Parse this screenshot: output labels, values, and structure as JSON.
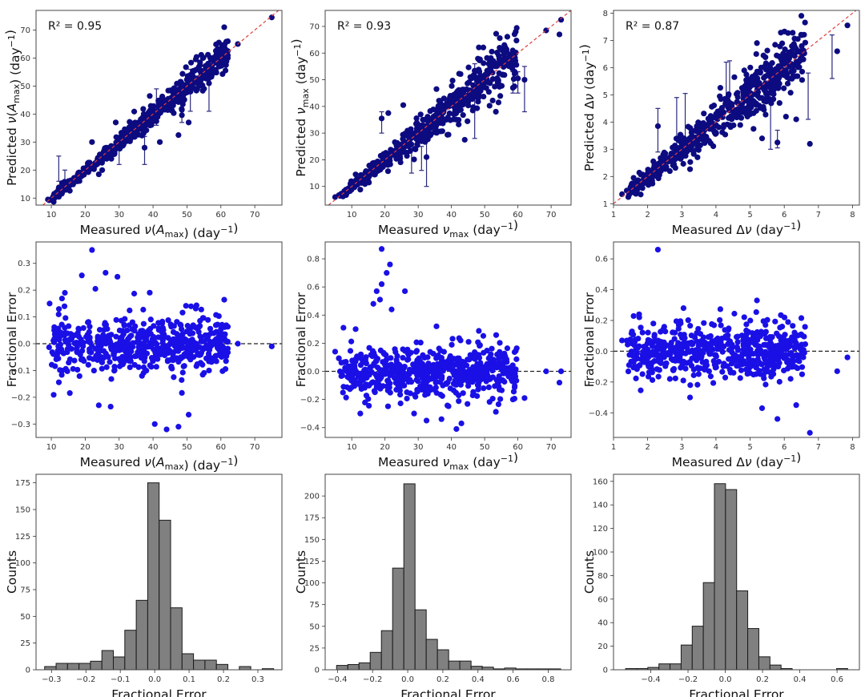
{
  "colors": {
    "scatter_pred": "#0d0b80",
    "scatter_err": "#1a10e6",
    "errbar": "#2a2a80",
    "oneone": "#e04040",
    "hist_fill": "#808080",
    "hist_edge": "#1a1a1a",
    "axis": "#444444"
  },
  "chart_data": [
    {
      "id": "pred-vs-meas-amax",
      "type": "scatter",
      "row": 0,
      "col": 0,
      "xlabel": "Measured ν(A_max) (day⁻¹)",
      "ylabel": "Predicted ν(A_max) (day⁻¹)",
      "annotation": "R² = 0.95",
      "xlim": [
        5.5,
        78
      ],
      "ylim": [
        7.5,
        77
      ],
      "xticks": [
        10,
        20,
        30,
        40,
        50,
        60,
        70
      ],
      "yticks": [
        10,
        20,
        30,
        40,
        50,
        60,
        70
      ],
      "tick_labels_x": [
        "10",
        "20",
        "30",
        "40",
        "50",
        "60",
        "70"
      ],
      "tick_labels_y": [
        "10",
        "20",
        "30",
        "40",
        "50",
        "60",
        "70"
      ],
      "reference_line": "y = x (red dashed)",
      "scatter_seed": 11,
      "n_points": 560,
      "trend": "identity",
      "spread": 0.06,
      "outliers": [
        [
          9,
          9.5
        ],
        [
          12,
          12
        ],
        [
          22,
          30
        ],
        [
          24,
          18.5
        ],
        [
          25,
          20
        ],
        [
          29,
          37
        ],
        [
          37.5,
          28
        ],
        [
          42,
          30
        ],
        [
          47.5,
          32.5
        ],
        [
          48.5,
          41.5
        ],
        [
          50.5,
          37
        ],
        [
          56.5,
          51
        ],
        [
          61,
          61.5
        ],
        [
          65,
          65
        ],
        [
          75,
          74.5
        ]
      ],
      "errorbars": [
        [
          12.2,
          16,
          25
        ],
        [
          14,
          14,
          20
        ],
        [
          37.5,
          22,
          32
        ],
        [
          41,
          36,
          49
        ],
        [
          51,
          41,
          56
        ],
        [
          56.5,
          41,
          54
        ],
        [
          48.5,
          37,
          44
        ],
        [
          30,
          22,
          30
        ]
      ]
    },
    {
      "id": "pred-vs-meas-numax",
      "type": "scatter",
      "row": 0,
      "col": 1,
      "xlabel": "Measured ν_max (day⁻¹)",
      "ylabel": "Predicted ν_max (day⁻¹)",
      "annotation": "R² = 0.93",
      "xlim": [
        2,
        76
      ],
      "ylim": [
        3,
        76
      ],
      "xticks": [
        10,
        20,
        30,
        40,
        50,
        60,
        70
      ],
      "yticks": [
        10,
        20,
        30,
        40,
        50,
        60,
        70
      ],
      "tick_labels_x": [
        "10",
        "20",
        "30",
        "40",
        "50",
        "60",
        "70"
      ],
      "tick_labels_y": [
        "10",
        "20",
        "30",
        "40",
        "50",
        "60",
        "70"
      ],
      "reference_line": "y = x (red dashed)",
      "scatter_seed": 23,
      "n_points": 620,
      "trend": "identity",
      "spread": 0.1,
      "outliers": [
        [
          5,
          6
        ],
        [
          19,
          35.5
        ],
        [
          21,
          37.5
        ],
        [
          25.5,
          40.5
        ],
        [
          32.5,
          21
        ],
        [
          35.5,
          46.5
        ],
        [
          44,
          27.5
        ],
        [
          58.5,
          47
        ],
        [
          60,
          50.5
        ],
        [
          62,
          50
        ],
        [
          68.5,
          68.5
        ],
        [
          72.5,
          67
        ],
        [
          73,
          72.5
        ]
      ],
      "errorbars": [
        [
          32.5,
          10,
          30
        ],
        [
          28,
          15,
          26
        ],
        [
          47,
          28,
          56
        ],
        [
          62,
          38,
          55
        ],
        [
          60,
          45,
          53
        ],
        [
          58.5,
          45,
          53
        ],
        [
          31,
          16,
          25
        ],
        [
          19,
          30,
          38
        ]
      ]
    },
    {
      "id": "pred-vs-meas-dnu",
      "type": "scatter",
      "row": 0,
      "col": 2,
      "xlabel": "Measured Δν (day⁻¹)",
      "ylabel": "Predicted Δν (day⁻¹)",
      "annotation": "R² = 0.87",
      "xlim": [
        1.0,
        8.2
      ],
      "ylim": [
        0.95,
        8.1
      ],
      "xticks": [
        1,
        2,
        3,
        4,
        5,
        6,
        7,
        8
      ],
      "yticks": [
        1,
        2,
        3,
        4,
        5,
        6,
        7,
        8
      ],
      "tick_labels_x": [
        "1",
        "2",
        "3",
        "4",
        "5",
        "6",
        "7",
        "8"
      ],
      "tick_labels_y": [
        "1",
        "2",
        "3",
        "4",
        "5",
        "6",
        "7",
        "8"
      ],
      "reference_line": "y = x (red dashed)",
      "scatter_seed": 37,
      "n_points": 600,
      "trend": "identity",
      "spread": 0.1,
      "outliers": [
        [
          1.25,
          1.35
        ],
        [
          2.3,
          3.85
        ],
        [
          2.65,
          2.2
        ],
        [
          4.0,
          3.6
        ],
        [
          5.1,
          3.75
        ],
        [
          5.35,
          3.4
        ],
        [
          5.8,
          3.25
        ],
        [
          6.05,
          4.2
        ],
        [
          6.35,
          4.1
        ],
        [
          6.75,
          3.2
        ],
        [
          7.55,
          6.6
        ],
        [
          7.85,
          7.55
        ],
        [
          5.2,
          6.9
        ]
      ],
      "errorbars": [
        [
          2.3,
          2.9,
          4.5
        ],
        [
          2.85,
          3.0,
          4.9
        ],
        [
          3.1,
          3.3,
          5.05
        ],
        [
          4.3,
          4.6,
          6.2
        ],
        [
          4.4,
          4.7,
          6.25
        ],
        [
          5.6,
          3.0,
          5.5
        ],
        [
          6.7,
          4.1,
          5.8
        ],
        [
          7.4,
          5.6,
          7.2
        ],
        [
          5.8,
          3.05,
          3.7
        ]
      ]
    },
    {
      "id": "frac-err-amax",
      "type": "scatter",
      "row": 1,
      "col": 0,
      "xlabel": "Measured ν(A_max) (day⁻¹)",
      "ylabel": "Fractional Error",
      "xlim": [
        5.5,
        78
      ],
      "ylim": [
        -0.35,
        0.38
      ],
      "xticks": [
        10,
        20,
        30,
        40,
        50,
        60,
        70
      ],
      "yticks": [
        -0.3,
        -0.2,
        -0.1,
        0.0,
        0.1,
        0.2,
        0.3
      ],
      "tick_labels_x": [
        "10",
        "20",
        "30",
        "40",
        "50",
        "60",
        "70"
      ],
      "tick_labels_y": [
        "−0.3",
        "−0.2",
        "−0.1",
        "0.0",
        "0.1",
        "0.2",
        "0.3"
      ],
      "reference_line": "y = 0 (black dashed)",
      "scatter_seed": 11,
      "n_points": 560,
      "trend": "residual",
      "spread": 0.06,
      "outliers": [
        [
          22,
          0.35
        ],
        [
          26,
          0.265
        ],
        [
          29.5,
          0.25
        ],
        [
          19,
          0.255
        ],
        [
          23,
          0.205
        ],
        [
          9.5,
          0.15
        ],
        [
          14,
          0.19
        ],
        [
          44,
          -0.32
        ],
        [
          47.5,
          -0.31
        ],
        [
          40.5,
          -0.3
        ],
        [
          50.5,
          -0.265
        ],
        [
          24,
          -0.23
        ],
        [
          27.5,
          -0.235
        ],
        [
          56.5,
          -0.1
        ],
        [
          75,
          -0.01
        ],
        [
          65,
          0.0
        ]
      ]
    },
    {
      "id": "frac-err-numax",
      "type": "scatter",
      "row": 1,
      "col": 1,
      "xlabel": "Measured ν_max (day⁻¹)",
      "ylabel": "Fractional Error",
      "xlim": [
        2,
        76
      ],
      "ylim": [
        -0.47,
        0.92
      ],
      "xticks": [
        10,
        20,
        30,
        40,
        50,
        60,
        70
      ],
      "yticks": [
        -0.4,
        -0.2,
        0.0,
        0.2,
        0.4,
        0.6,
        0.8
      ],
      "tick_labels_x": [
        "10",
        "20",
        "30",
        "40",
        "50",
        "60",
        "70"
      ],
      "tick_labels_y": [
        "−0.4",
        "−0.2",
        "0.0",
        "0.2",
        "0.4",
        "0.6",
        "0.8"
      ],
      "reference_line": "y = 0 (black dashed)",
      "scatter_seed": 23,
      "n_points": 620,
      "trend": "residual",
      "spread": 0.1,
      "outliers": [
        [
          19,
          0.87
        ],
        [
          21.5,
          0.76
        ],
        [
          20.5,
          0.7
        ],
        [
          19,
          0.62
        ],
        [
          17.5,
          0.57
        ],
        [
          26,
          0.57
        ],
        [
          18.5,
          0.51
        ],
        [
          16.5,
          0.48
        ],
        [
          22,
          0.44
        ],
        [
          35.5,
          0.32
        ],
        [
          7.5,
          0.31
        ],
        [
          41.5,
          -0.41
        ],
        [
          43,
          -0.37
        ],
        [
          37,
          -0.34
        ],
        [
          32.5,
          -0.35
        ],
        [
          5,
          0.14
        ],
        [
          73,
          0.0
        ],
        [
          72.5,
          -0.08
        ],
        [
          68.5,
          0.0
        ],
        [
          58.5,
          -0.2
        ],
        [
          62,
          -0.19
        ]
      ]
    },
    {
      "id": "frac-err-dnu",
      "type": "scatter",
      "row": 1,
      "col": 2,
      "xlabel": "Measured Δν (day⁻¹)",
      "ylabel": "Fractional Error",
      "xlim": [
        1.0,
        8.2
      ],
      "ylim": [
        -0.56,
        0.71
      ],
      "xticks": [
        1,
        2,
        3,
        4,
        5,
        6,
        7,
        8
      ],
      "yticks": [
        -0.4,
        -0.2,
        0.0,
        0.2,
        0.4,
        0.6
      ],
      "tick_labels_x": [
        "1",
        "2",
        "3",
        "4",
        "5",
        "6",
        "7",
        "8"
      ],
      "tick_labels_y": [
        "−0.4",
        "−0.2",
        "0.0",
        "0.2",
        "0.4",
        "0.6"
      ],
      "reference_line": "y = 0 (black dashed)",
      "scatter_seed": 37,
      "n_points": 600,
      "trend": "residual",
      "spread": 0.1,
      "outliers": [
        [
          2.3,
          0.66
        ],
        [
          5.2,
          0.33
        ],
        [
          3.05,
          0.28
        ],
        [
          1.75,
          0.24
        ],
        [
          6.75,
          -0.53
        ],
        [
          5.8,
          -0.44
        ],
        [
          5.35,
          -0.37
        ],
        [
          6.35,
          -0.35
        ],
        [
          1.25,
          0.07
        ],
        [
          7.85,
          -0.04
        ],
        [
          2.65,
          -0.18
        ],
        [
          7.55,
          -0.13
        ]
      ]
    },
    {
      "id": "hist-amax",
      "type": "bar",
      "row": 2,
      "col": 0,
      "xlabel": "Fractional Error",
      "ylabel": "Counts",
      "bin_edges_start": -0.32,
      "bin_width": 0.0333,
      "values": [
        3,
        6,
        6,
        6,
        8,
        18,
        12,
        37,
        65,
        175,
        140,
        58,
        15,
        9,
        9,
        5,
        0,
        3,
        0,
        1
      ],
      "xlim": [
        -0.345,
        0.37
      ],
      "ylim": [
        0,
        183
      ],
      "xticks": [
        -0.3,
        -0.2,
        -0.1,
        0.0,
        0.1,
        0.2,
        0.3
      ],
      "yticks": [
        0,
        25,
        50,
        75,
        100,
        125,
        150,
        175
      ],
      "tick_labels_x": [
        "−0.3",
        "−0.2",
        "−0.1",
        "0.0",
        "0.1",
        "0.2",
        "0.3"
      ],
      "tick_labels_y": [
        "0",
        "25",
        "50",
        "75",
        "100",
        "125",
        "150",
        "175"
      ]
    },
    {
      "id": "hist-numax",
      "type": "bar",
      "row": 2,
      "col": 1,
      "xlabel": "Fractional Error",
      "ylabel": "Counts",
      "bin_edges_start": -0.405,
      "bin_width": 0.0638,
      "values": [
        5,
        6,
        8,
        20,
        45,
        117,
        214,
        69,
        35,
        23,
        10,
        10,
        4,
        3,
        1,
        2,
        1,
        1,
        1,
        1
      ],
      "xlim": [
        -0.47,
        0.93
      ],
      "ylim": [
        0,
        225
      ],
      "xticks": [
        -0.4,
        -0.2,
        0.0,
        0.2,
        0.4,
        0.6,
        0.8
      ],
      "yticks": [
        0,
        25,
        50,
        75,
        100,
        125,
        150,
        175,
        200
      ],
      "tick_labels_x": [
        "−0.4",
        "−0.2",
        "0.0",
        "0.2",
        "0.4",
        "0.6",
        "0.8"
      ],
      "tick_labels_y": [
        "0",
        "25",
        "50",
        "75",
        "100",
        "125",
        "150",
        "175",
        "200"
      ]
    },
    {
      "id": "hist-dnu",
      "type": "bar",
      "row": 2,
      "col": 2,
      "xlabel": "Fractional Error",
      "ylabel": "Counts",
      "bin_edges_start": -0.535,
      "bin_width": 0.0596,
      "values": [
        1,
        1,
        2,
        5,
        5,
        21,
        37,
        74,
        158,
        153,
        67,
        35,
        11,
        4,
        1,
        0,
        0,
        0,
        0,
        1
      ],
      "xlim": [
        -0.6,
        0.72
      ],
      "ylim": [
        0,
        166
      ],
      "xticks": [
        -0.4,
        -0.2,
        0.0,
        0.2,
        0.4,
        0.6
      ],
      "yticks": [
        0,
        20,
        40,
        60,
        80,
        100,
        120,
        140,
        160
      ],
      "tick_labels_x": [
        "−0.4",
        "−0.2",
        "0.0",
        "0.2",
        "0.4",
        "0.6"
      ],
      "tick_labels_y": [
        "0",
        "20",
        "40",
        "60",
        "80",
        "100",
        "120",
        "140",
        "160"
      ]
    }
  ]
}
